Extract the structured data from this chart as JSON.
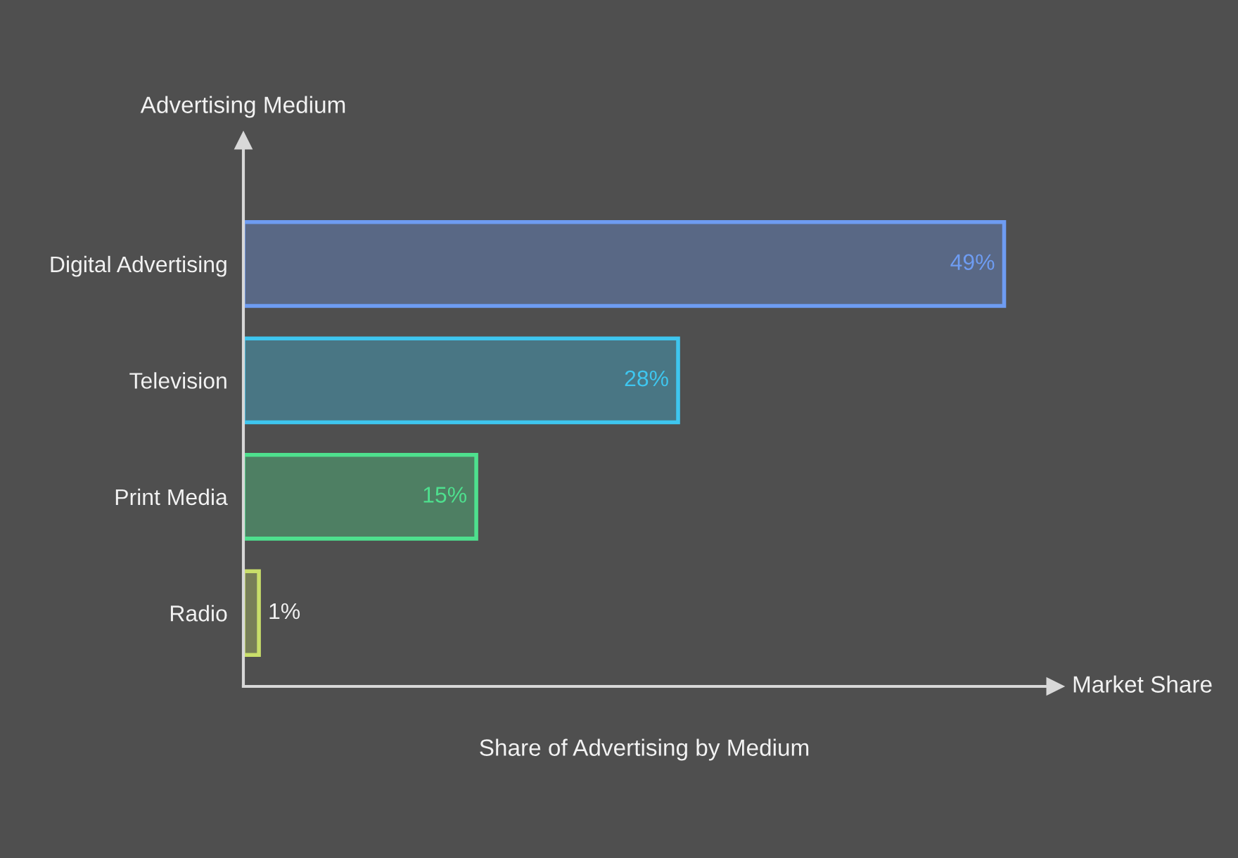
{
  "chart_data": {
    "type": "bar",
    "orientation": "horizontal",
    "title": "Share of Advertising by Medium",
    "xlabel": "Market Share",
    "ylabel": "Advertising Medium",
    "categories": [
      "Digital Advertising",
      "Television",
      "Print Media",
      "Radio"
    ],
    "values": [
      49,
      28,
      15,
      1
    ],
    "value_labels": [
      "49%",
      "28%",
      "15%",
      "1%"
    ],
    "colors": [
      "#6e9cf2",
      "#3ec6ef",
      "#4ee08e",
      "#c9df6a"
    ],
    "grid": false,
    "legend": false
  }
}
